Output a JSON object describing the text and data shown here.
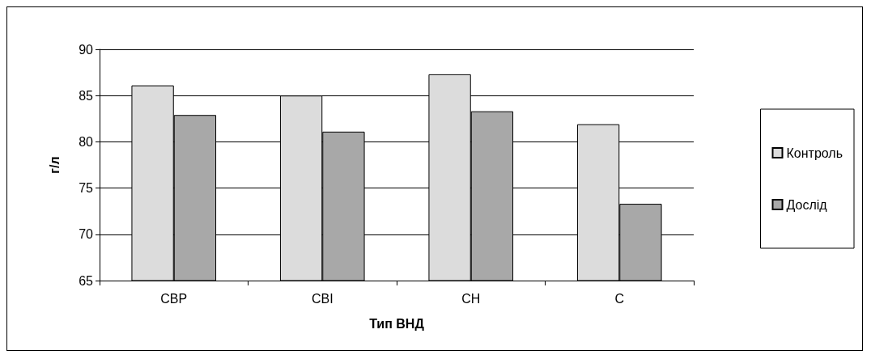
{
  "chart_data": {
    "type": "bar",
    "xlabel": "Тип ВНД",
    "ylabel": "г/л",
    "categories": [
      "СВР",
      "СВІ",
      "СН",
      "С"
    ],
    "series": [
      {
        "name": "Контроль",
        "color": "#dcdcdc",
        "values": [
          86.1,
          85.0,
          87.3,
          81.9
        ]
      },
      {
        "name": "Дослід",
        "color": "#a8a8a8",
        "values": [
          82.9,
          81.1,
          83.3,
          73.3
        ]
      }
    ],
    "ylim": [
      65,
      90
    ],
    "yticks": [
      65,
      70,
      75,
      80,
      85,
      90
    ],
    "grid": "y",
    "legend": "right"
  }
}
